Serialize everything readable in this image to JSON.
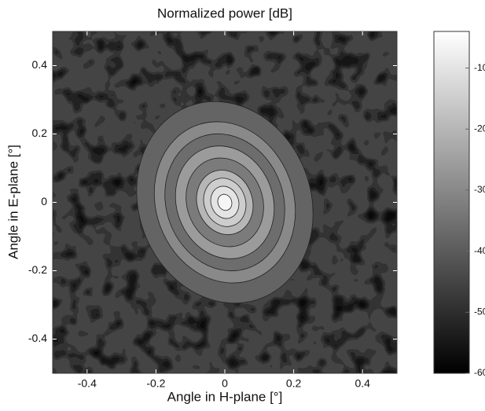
{
  "chart_data": {
    "type": "contour",
    "title": "Normalized power [dB]",
    "xlabel": "Angle in H-plane [°]",
    "ylabel": "Angle in E-plane [°]",
    "xlim": [
      -0.5,
      0.5
    ],
    "xticks": [
      -0.4,
      -0.2,
      0,
      0.2,
      0.4
    ],
    "ylim": [
      -0.5,
      0.5
    ],
    "yticks": [
      -0.4,
      -0.2,
      0,
      0.2,
      0.4
    ],
    "clim": [
      -60,
      -4
    ],
    "cticks": [
      -60,
      -50,
      -40,
      -30,
      -20,
      -10
    ],
    "colormap": "gray",
    "background_level": -45,
    "rings": [
      {
        "x": 0,
        "y": 0,
        "r": 0.25,
        "level": -38
      },
      {
        "x": 0,
        "y": 0,
        "r": 0.2,
        "level": -30
      },
      {
        "x": 0,
        "y": 0,
        "r": 0.17,
        "level": -36
      },
      {
        "x": 0,
        "y": 0,
        "r": 0.14,
        "level": -26
      },
      {
        "x": 0,
        "y": 0,
        "r": 0.11,
        "level": -33
      },
      {
        "x": 0,
        "y": 0,
        "r": 0.08,
        "level": -20
      },
      {
        "x": 0,
        "y": 0,
        "r": 0.06,
        "level": -15
      },
      {
        "x": 0,
        "y": 0,
        "r": 0.04,
        "level": -10
      },
      {
        "x": 0,
        "y": 0,
        "r": 0.02,
        "level": -6
      }
    ]
  }
}
